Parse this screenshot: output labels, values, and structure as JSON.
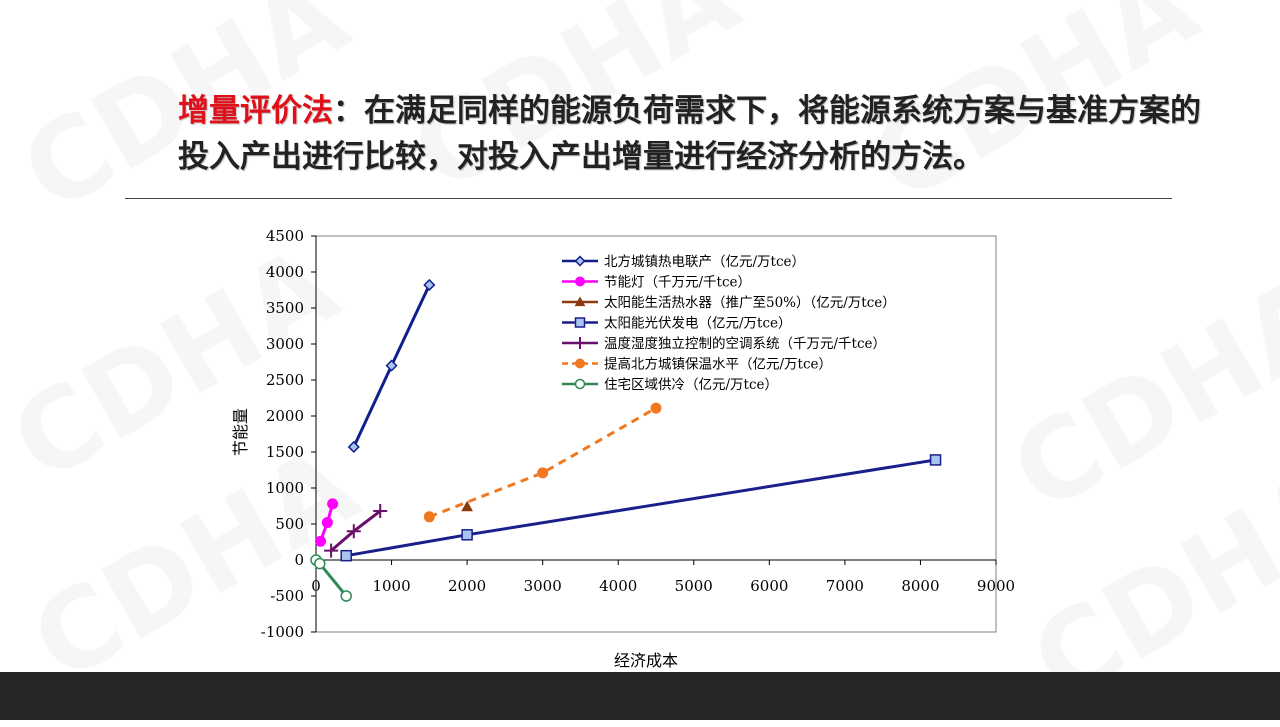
{
  "slide": {
    "headline_term": "增量评价法",
    "headline_rest": "：在满足同样的能源负荷需求下，将能源系统方案与基准方案的投入产出进行比较，对投入产出增量进行经济分析的方法。",
    "watermark": "CDHA"
  },
  "chart_data": {
    "type": "line",
    "title": "",
    "xlabel": "经济成本",
    "ylabel": "节能量",
    "xlim": [
      0,
      9000
    ],
    "ylim": [
      -1000,
      4500
    ],
    "xticks": [
      0,
      1000,
      2000,
      3000,
      4000,
      5000,
      6000,
      7000,
      8000,
      9000
    ],
    "yticks": [
      -1000,
      -500,
      0,
      500,
      1000,
      1500,
      2000,
      2500,
      3000,
      3500,
      4000,
      4500
    ],
    "grid": false,
    "legend_position": "top-center",
    "series": [
      {
        "name": "北方城镇热电联产（亿元/万tce）",
        "color": "#0f1f8c",
        "marker": "diamond",
        "dash": false,
        "points": [
          [
            500,
            1570
          ],
          [
            1000,
            2700
          ],
          [
            1500,
            3820
          ]
        ]
      },
      {
        "name": "节能灯（千万元/千tce）",
        "color": "#ff00ff",
        "marker": "circle",
        "dash": false,
        "points": [
          [
            60,
            260
          ],
          [
            150,
            520
          ],
          [
            220,
            780
          ]
        ]
      },
      {
        "name": "太阳能生活热水器（推广至50%）（亿元/万tce）",
        "color": "#8b3a0f",
        "marker": "triangle",
        "dash": false,
        "points": [
          [
            2000,
            740
          ]
        ]
      },
      {
        "name": "太阳能光伏发电（亿元/万tce）",
        "color": "#1a1f8c",
        "marker": "square",
        "dash": false,
        "points": [
          [
            400,
            60
          ],
          [
            2000,
            350
          ],
          [
            8200,
            1390
          ]
        ]
      },
      {
        "name": "温度湿度独立控制的空调系统（千万元/千tce）",
        "color": "#6a0f6a",
        "marker": "plus",
        "dash": false,
        "points": [
          [
            200,
            130
          ],
          [
            500,
            400
          ],
          [
            850,
            680
          ]
        ]
      },
      {
        "name": "提高北方城镇保温水平（亿元/万tce）",
        "color": "#f07820",
        "marker": "circle",
        "dash": true,
        "points": [
          [
            1500,
            600
          ],
          [
            3000,
            1210
          ],
          [
            4500,
            2110
          ]
        ]
      },
      {
        "name": "住宅区域供冷（亿元/万tce）",
        "color": "#2e8b57",
        "marker": "circle-open",
        "dash": false,
        "points": [
          [
            0,
            0
          ],
          [
            50,
            -50
          ],
          [
            400,
            -500
          ]
        ]
      }
    ]
  }
}
